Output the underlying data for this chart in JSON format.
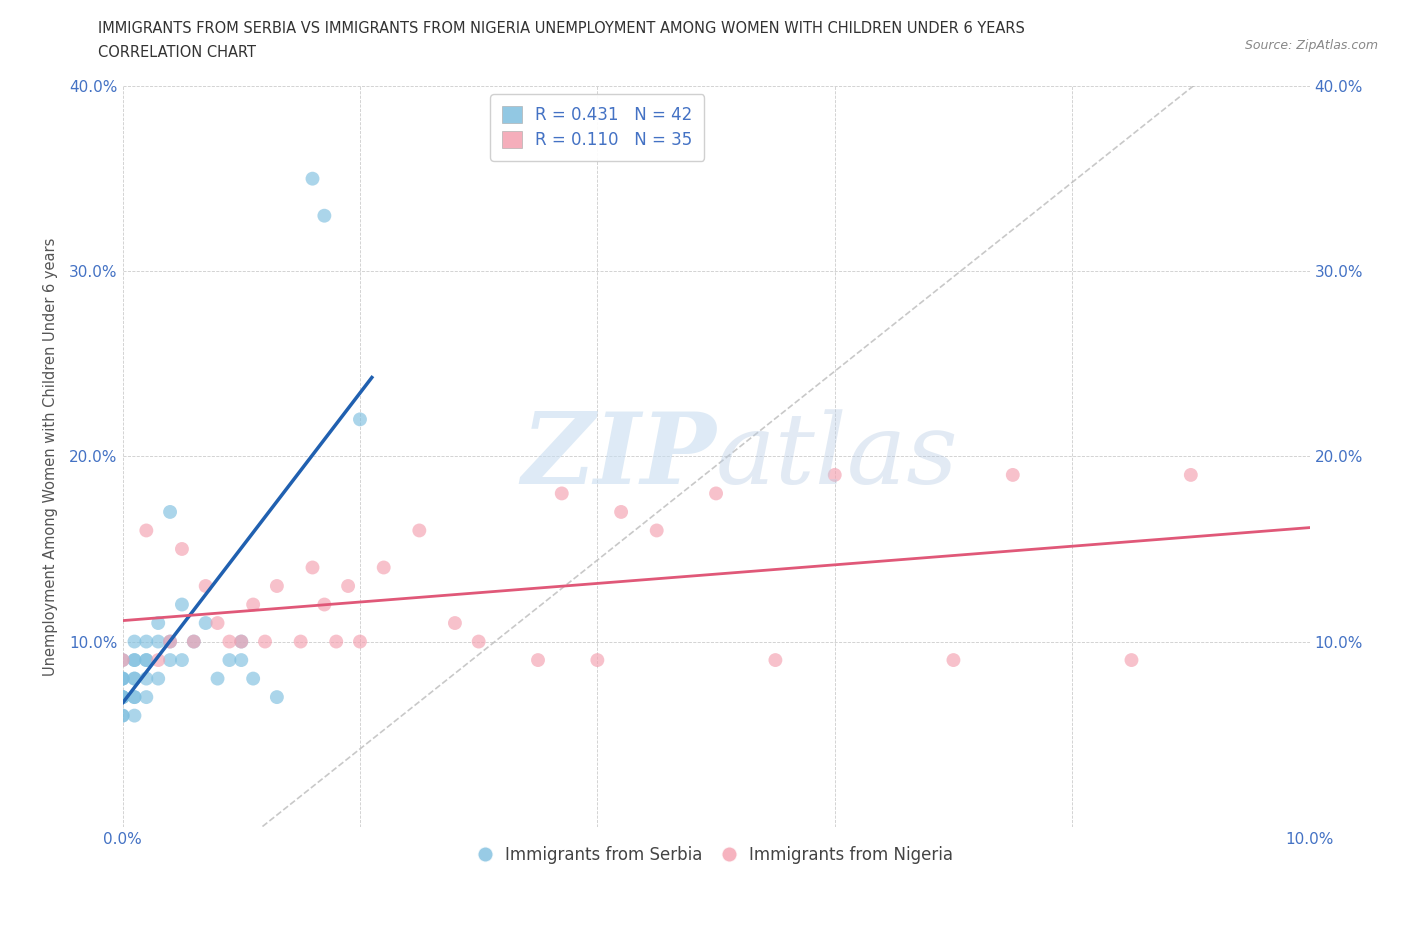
{
  "title_line1": "IMMIGRANTS FROM SERBIA VS IMMIGRANTS FROM NIGERIA UNEMPLOYMENT AMONG WOMEN WITH CHILDREN UNDER 6 YEARS",
  "title_line2": "CORRELATION CHART",
  "source": "Source: ZipAtlas.com",
  "ylabel": "Unemployment Among Women with Children Under 6 years",
  "xlim": [
    0.0,
    0.1
  ],
  "ylim": [
    0.0,
    0.4
  ],
  "xtick_positions": [
    0.0,
    0.02,
    0.04,
    0.06,
    0.08,
    0.1
  ],
  "xtick_labels": [
    "0.0%",
    "",
    "",
    "",
    "",
    "10.0%"
  ],
  "ytick_positions": [
    0.0,
    0.1,
    0.2,
    0.3,
    0.4
  ],
  "ytick_labels_left": [
    "",
    "10.0%",
    "20.0%",
    "30.0%",
    "40.0%"
  ],
  "ytick_labels_right": [
    "",
    "10.0%",
    "20.0%",
    "30.0%",
    "40.0%"
  ],
  "serbia_color": "#7fbfdf",
  "nigeria_color": "#f4a0b0",
  "serbia_line_color": "#2060b0",
  "nigeria_line_color": "#e05878",
  "serbia_R": 0.431,
  "serbia_N": 42,
  "nigeria_R": 0.11,
  "nigeria_N": 35,
  "legend_label_serbia": "Immigrants from Serbia",
  "legend_label_nigeria": "Immigrants from Nigeria",
  "watermark_zip": "ZIP",
  "watermark_atlas": "atlas",
  "serbia_x": [
    0.0,
    0.0,
    0.0,
    0.0,
    0.0,
    0.0,
    0.0,
    0.0,
    0.0,
    0.0,
    0.001,
    0.001,
    0.001,
    0.001,
    0.001,
    0.001,
    0.001,
    0.001,
    0.002,
    0.002,
    0.002,
    0.002,
    0.002,
    0.003,
    0.003,
    0.003,
    0.004,
    0.004,
    0.004,
    0.005,
    0.005,
    0.006,
    0.007,
    0.008,
    0.009,
    0.01,
    0.01,
    0.011,
    0.013,
    0.016,
    0.017,
    0.02
  ],
  "serbia_y": [
    0.07,
    0.07,
    0.08,
    0.06,
    0.07,
    0.08,
    0.09,
    0.07,
    0.08,
    0.06,
    0.08,
    0.09,
    0.07,
    0.08,
    0.06,
    0.09,
    0.1,
    0.07,
    0.09,
    0.08,
    0.1,
    0.07,
    0.09,
    0.1,
    0.08,
    0.11,
    0.1,
    0.17,
    0.09,
    0.12,
    0.09,
    0.1,
    0.11,
    0.08,
    0.09,
    0.09,
    0.1,
    0.08,
    0.07,
    0.35,
    0.33,
    0.22
  ],
  "nigeria_x": [
    0.0,
    0.002,
    0.003,
    0.004,
    0.005,
    0.006,
    0.007,
    0.008,
    0.009,
    0.01,
    0.011,
    0.012,
    0.013,
    0.015,
    0.016,
    0.017,
    0.018,
    0.019,
    0.02,
    0.022,
    0.025,
    0.028,
    0.03,
    0.035,
    0.037,
    0.04,
    0.042,
    0.045,
    0.05,
    0.055,
    0.06,
    0.07,
    0.075,
    0.085,
    0.09
  ],
  "nigeria_y": [
    0.09,
    0.16,
    0.09,
    0.1,
    0.15,
    0.1,
    0.13,
    0.11,
    0.1,
    0.1,
    0.12,
    0.1,
    0.13,
    0.1,
    0.14,
    0.12,
    0.1,
    0.13,
    0.1,
    0.14,
    0.16,
    0.11,
    0.1,
    0.09,
    0.18,
    0.09,
    0.17,
    0.16,
    0.18,
    0.09,
    0.19,
    0.09,
    0.19,
    0.09,
    0.19
  ],
  "background_color": "#ffffff",
  "grid_color": "#cccccc",
  "title_color": "#333333",
  "axis_label_color": "#555555",
  "tick_color": "#4472c4",
  "legend_text_color": "#4472c4",
  "dashed_line_color": "#bbbbbb",
  "source_color": "#888888"
}
